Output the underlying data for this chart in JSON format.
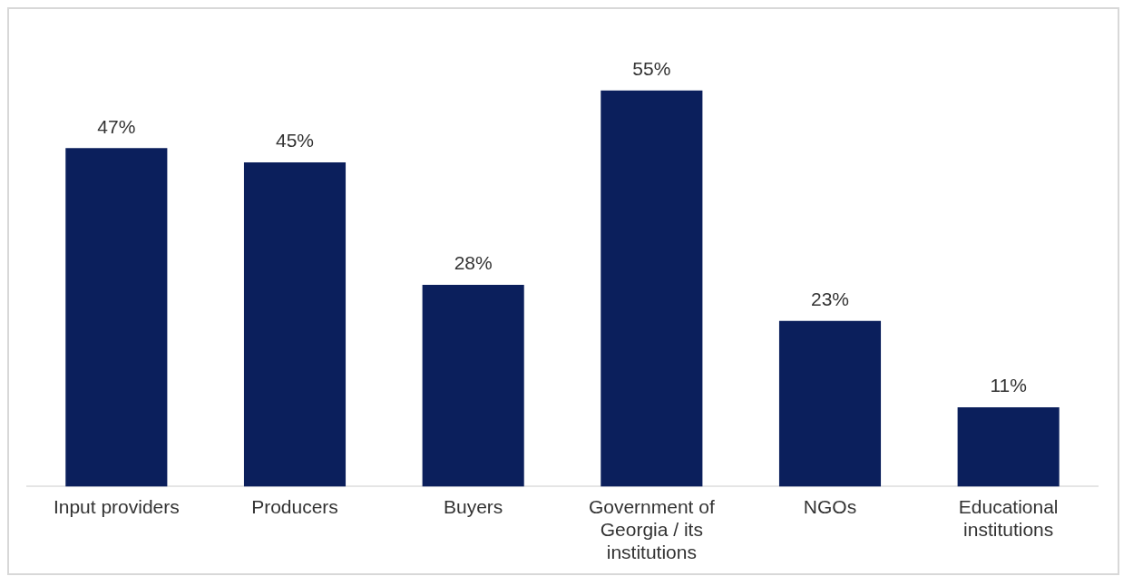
{
  "chart_data": {
    "type": "bar",
    "categories": [
      "Input providers",
      "Producers",
      "Buyers",
      "Government of Georgia / its institutions",
      "NGOs",
      "Educational institutions"
    ],
    "values": [
      47,
      45,
      28,
      55,
      23,
      11
    ],
    "color": "#0b1f5c",
    "value_labels": [
      "47%",
      "45%",
      "28%",
      "55%",
      "23%",
      "11%"
    ],
    "grid": false,
    "legend": false
  }
}
